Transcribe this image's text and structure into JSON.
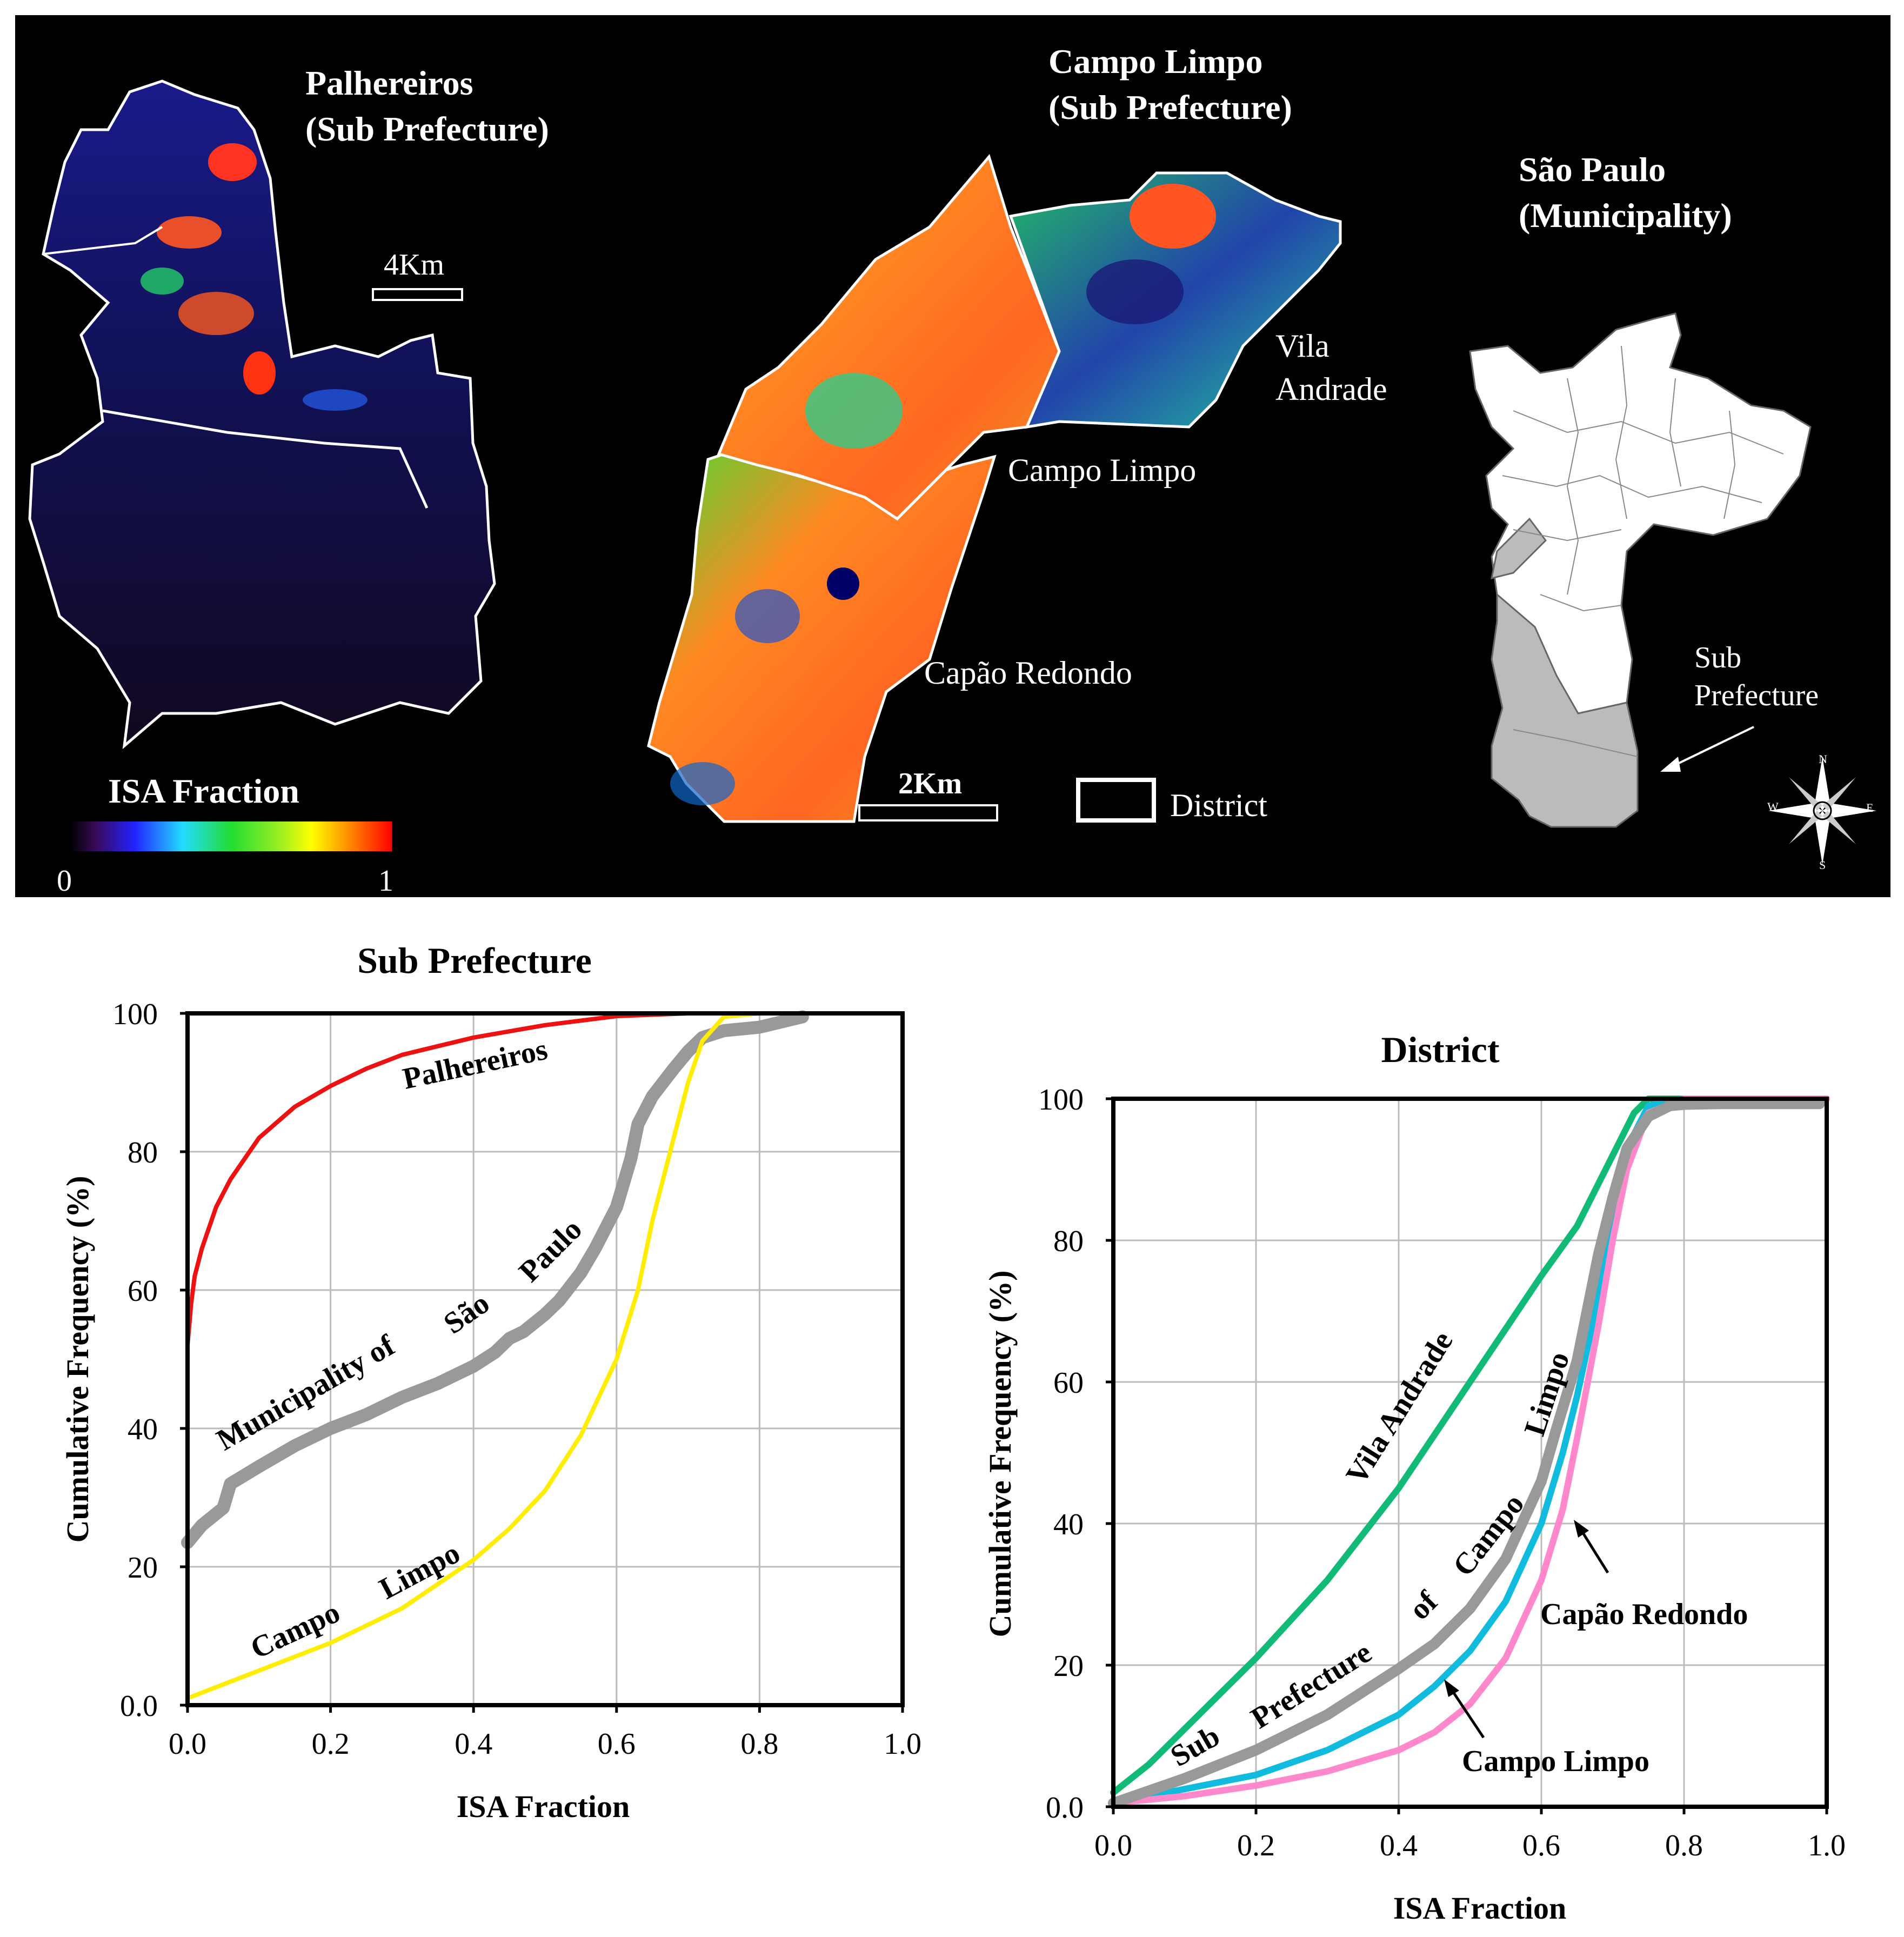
{
  "map_panel": {
    "palhereiros_title_1": "Palhereiros",
    "palhereiros_title_2": "(Sub Prefecture)",
    "scale_4km": "4Km",
    "campo_title_1": "Campo Limpo",
    "campo_title_2": "(Sub Prefecture)",
    "vila_andrade_1": "Vila",
    "vila_andrade_2": "Andrade",
    "campo_limpo": "Campo Limpo",
    "capao_redondo": "Capão Redondo",
    "scale_2km": "2Km",
    "district_legend": "District",
    "sp_title_1": "São Paulo",
    "sp_title_2": "(Municipality)",
    "sub_pref_1": "Sub",
    "sub_pref_2": "Prefecture",
    "colorbar_title": "ISA Fraction",
    "colorbar_min": "0",
    "colorbar_max": "1",
    "compass_n": "N",
    "compass_s": "S",
    "compass_e": "E",
    "compass_w": "W"
  },
  "chart_data": [
    {
      "type": "line",
      "title": "Sub Prefecture",
      "xlabel": "ISA Fraction",
      "ylabel": "Cumulative Frequency (%)",
      "xlim": [
        0,
        1
      ],
      "ylim": [
        0,
        100
      ],
      "x_ticks": [
        "0.0",
        "0.2",
        "0.4",
        "0.6",
        "0.8",
        "1.0"
      ],
      "y_ticks": [
        "0.0",
        "20",
        "40",
        "60",
        "80",
        "100"
      ],
      "series": [
        {
          "name": "Palhereiros",
          "label_words": [
            "Palhereiros"
          ],
          "color": "#ee1111",
          "width": 8,
          "x": [
            0,
            0.005,
            0.01,
            0.02,
            0.04,
            0.06,
            0.08,
            0.1,
            0.15,
            0.2,
            0.25,
            0.3,
            0.4,
            0.5,
            0.6,
            0.7,
            0.8
          ],
          "y": [
            52,
            58,
            62,
            66,
            72,
            76,
            79,
            82,
            86.5,
            89.5,
            92,
            94,
            96.5,
            98.3,
            99.6,
            100,
            100
          ]
        },
        {
          "name": "Municipality of São Paulo",
          "label_words": [
            "Municipality of",
            "São",
            "Paulo"
          ],
          "color": "#999999",
          "width": 24,
          "x": [
            0,
            0.02,
            0.05,
            0.06,
            0.1,
            0.15,
            0.2,
            0.25,
            0.3,
            0.35,
            0.4,
            0.43,
            0.45,
            0.47,
            0.5,
            0.52,
            0.55,
            0.57,
            0.6,
            0.62,
            0.63,
            0.65,
            0.68,
            0.7,
            0.72,
            0.75,
            0.8,
            0.82,
            0.86
          ],
          "y": [
            23.5,
            26,
            28.5,
            32,
            34.5,
            37.5,
            40,
            42,
            44.5,
            46.5,
            49,
            51,
            53,
            54,
            56.5,
            58.5,
            62.5,
            66,
            72,
            79,
            84,
            88,
            92,
            94.5,
            96.5,
            97.5,
            98,
            98.5,
            99.5
          ]
        },
        {
          "name": "Campo Limpo",
          "label_words": [
            "Campo",
            "Limpo"
          ],
          "color": "#ffee00",
          "width": 8,
          "x": [
            0,
            0.05,
            0.1,
            0.2,
            0.3,
            0.4,
            0.45,
            0.5,
            0.55,
            0.6,
            0.63,
            0.65,
            0.68,
            0.7,
            0.72,
            0.75,
            0.8,
            1.0
          ],
          "y": [
            1,
            3,
            5,
            9,
            14,
            21,
            25.5,
            31,
            39,
            50,
            60,
            70,
            82,
            90,
            96,
            99.5,
            100,
            100
          ]
        }
      ]
    },
    {
      "type": "line",
      "title": "District",
      "xlabel": "ISA Fraction",
      "ylabel": "Cumulative Frequency (%)",
      "xlim": [
        0,
        1
      ],
      "ylim": [
        0,
        100
      ],
      "x_ticks": [
        "0.0",
        "0.2",
        "0.4",
        "0.6",
        "0.8",
        "1.0"
      ],
      "y_ticks": [
        "0.0",
        "20",
        "40",
        "60",
        "80",
        "100"
      ],
      "series": [
        {
          "name": "Vila Andrade",
          "label_words": [
            "Vila Andrade"
          ],
          "color": "#11bb77",
          "width": 12,
          "x": [
            0,
            0.05,
            0.1,
            0.2,
            0.3,
            0.4,
            0.5,
            0.6,
            0.65,
            0.7,
            0.73,
            0.75,
            0.8,
            1.0
          ],
          "y": [
            2,
            6,
            11,
            21,
            32,
            45,
            60,
            75,
            82,
            92,
            98,
            100,
            100,
            100
          ]
        },
        {
          "name": "Campo Limpo",
          "label_words": [
            "Campo Limpo"
          ],
          "color": "#11bbdd",
          "width": 12,
          "x": [
            0,
            0.1,
            0.2,
            0.3,
            0.4,
            0.45,
            0.5,
            0.55,
            0.6,
            0.63,
            0.65,
            0.68,
            0.7,
            0.72,
            0.75,
            0.8,
            1.0
          ],
          "y": [
            0.5,
            2.5,
            4.5,
            8,
            13,
            17,
            22,
            29,
            40,
            50,
            58,
            72,
            84,
            93,
            99,
            100,
            100
          ]
        },
        {
          "name": "Capão Redondo",
          "label_words": [
            "Capão Redondo"
          ],
          "color": "#ff88cc",
          "width": 12,
          "x": [
            0,
            0.1,
            0.2,
            0.3,
            0.4,
            0.45,
            0.5,
            0.55,
            0.6,
            0.63,
            0.65,
            0.68,
            0.7,
            0.72,
            0.75,
            0.8,
            1.0
          ],
          "y": [
            0.5,
            1.5,
            3,
            5,
            8,
            10.5,
            14.5,
            21,
            32,
            42,
            52,
            68,
            80,
            90,
            98,
            100,
            100
          ]
        },
        {
          "name": "Sub Prefecture of Campo Limpo",
          "label_words": [
            "Sub",
            "Prefecture",
            "of",
            "Campo",
            "Limpo"
          ],
          "color": "#999999",
          "width": 20,
          "x": [
            0,
            0.1,
            0.2,
            0.3,
            0.4,
            0.45,
            0.5,
            0.55,
            0.6,
            0.62,
            0.65,
            0.68,
            0.7,
            0.72,
            0.75,
            0.78,
            0.8,
            0.85,
            0.99
          ],
          "y": [
            0.5,
            4,
            8,
            13,
            19.5,
            23,
            28,
            35,
            46,
            53,
            63,
            78,
            86,
            93,
            97.5,
            99,
            99.2,
            99.3,
            99.3
          ]
        }
      ]
    }
  ]
}
